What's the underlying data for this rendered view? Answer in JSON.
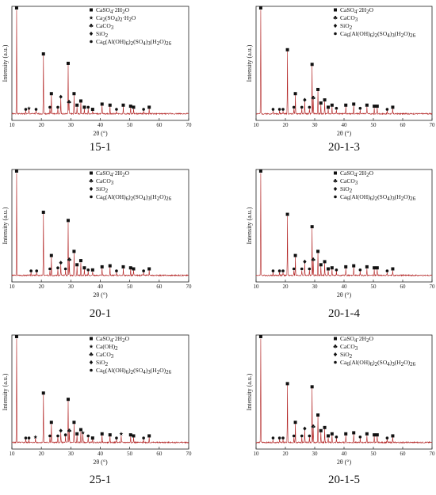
{
  "chart_data": [
    {
      "type": "line",
      "caption": "15-1",
      "xlabel": "2θ (°)",
      "ylabel": "Intensity (a.u.)",
      "xlim": [
        10,
        70
      ],
      "xticks": [
        10,
        20,
        30,
        40,
        50,
        60,
        70
      ],
      "legend": [
        "CaSO4·2H2O",
        "Ca2(SO4)2·H2O",
        "CaCO3",
        "SiO2",
        "Ca6(Al(OH)6)2(SO4)3(H2O)26"
      ],
      "peaks": [
        {
          "x": 11.6,
          "y": 100,
          "m": "square"
        },
        {
          "x": 14.7,
          "y": 3,
          "m": "circle"
        },
        {
          "x": 15.8,
          "y": 4,
          "m": "star"
        },
        {
          "x": 18.2,
          "y": 3,
          "m": "circle"
        },
        {
          "x": 20.7,
          "y": 56,
          "m": "square"
        },
        {
          "x": 22.9,
          "y": 5,
          "m": "circle"
        },
        {
          "x": 23.4,
          "y": 18,
          "m": "square"
        },
        {
          "x": 25.6,
          "y": 5,
          "m": "circle"
        },
        {
          "x": 26.6,
          "y": 15,
          "m": "diamond"
        },
        {
          "x": 29.1,
          "y": 47,
          "m": "square"
        },
        {
          "x": 29.4,
          "y": 10,
          "m": "club"
        },
        {
          "x": 31.1,
          "y": 18,
          "m": "square"
        },
        {
          "x": 32.1,
          "y": 7,
          "m": "square"
        },
        {
          "x": 33.4,
          "y": 11,
          "m": "square"
        },
        {
          "x": 34.6,
          "y": 5,
          "m": "square"
        },
        {
          "x": 35.9,
          "y": 5,
          "m": "circle"
        },
        {
          "x": 37.4,
          "y": 3,
          "m": "square"
        },
        {
          "x": 40.6,
          "y": 8,
          "m": "square"
        },
        {
          "x": 43.3,
          "y": 7,
          "m": "square"
        },
        {
          "x": 45.5,
          "y": 3,
          "m": "circle"
        },
        {
          "x": 47.8,
          "y": 7,
          "m": "square"
        },
        {
          "x": 50.3,
          "y": 6,
          "m": "square"
        },
        {
          "x": 51.3,
          "y": 5,
          "m": "square"
        },
        {
          "x": 54.7,
          "y": 3,
          "m": "circle"
        },
        {
          "x": 56.6,
          "y": 5,
          "m": "square"
        }
      ]
    },
    {
      "type": "line",
      "caption": "20-1-3",
      "xlabel": "2θ (°)",
      "ylabel": "Intensity (a.u.)",
      "xlim": [
        10,
        70
      ],
      "xticks": [
        10,
        20,
        30,
        40,
        50,
        60,
        70
      ],
      "legend": [
        "CaSO4·2H2O",
        "CaCO3",
        "SiO2",
        "Ca6(Al(OH)6)2(SO4)3(H2O)26"
      ],
      "peaks": [
        {
          "x": 11.6,
          "y": 100,
          "m": "square"
        },
        {
          "x": 15.8,
          "y": 3,
          "m": "circle"
        },
        {
          "x": 18.0,
          "y": 3,
          "m": "circle"
        },
        {
          "x": 19.2,
          "y": 3,
          "m": "circle"
        },
        {
          "x": 20.7,
          "y": 60,
          "m": "square"
        },
        {
          "x": 22.9,
          "y": 5,
          "m": "circle"
        },
        {
          "x": 23.4,
          "y": 18,
          "m": "square"
        },
        {
          "x": 25.6,
          "y": 5,
          "m": "circle"
        },
        {
          "x": 26.6,
          "y": 12,
          "m": "diamond"
        },
        {
          "x": 28.2,
          "y": 5,
          "m": "circle"
        },
        {
          "x": 29.1,
          "y": 46,
          "m": "square"
        },
        {
          "x": 29.5,
          "y": 14,
          "m": "club"
        },
        {
          "x": 31.1,
          "y": 22,
          "m": "square"
        },
        {
          "x": 32.1,
          "y": 9,
          "m": "square"
        },
        {
          "x": 33.4,
          "y": 12,
          "m": "square"
        },
        {
          "x": 34.6,
          "y": 5,
          "m": "square"
        },
        {
          "x": 35.9,
          "y": 7,
          "m": "square"
        },
        {
          "x": 37.4,
          "y": 4,
          "m": "circle"
        },
        {
          "x": 40.6,
          "y": 7,
          "m": "square"
        },
        {
          "x": 43.3,
          "y": 8,
          "m": "square"
        },
        {
          "x": 45.5,
          "y": 4,
          "m": "circle"
        },
        {
          "x": 47.8,
          "y": 7,
          "m": "square"
        },
        {
          "x": 50.3,
          "y": 6,
          "m": "square"
        },
        {
          "x": 51.3,
          "y": 6,
          "m": "square"
        },
        {
          "x": 54.7,
          "y": 3,
          "m": "circle"
        },
        {
          "x": 56.6,
          "y": 5,
          "m": "square"
        }
      ]
    },
    {
      "type": "line",
      "caption": "20-1",
      "xlabel": "2θ (°)",
      "ylabel": "Intensity (a.u.)",
      "xlim": [
        10,
        70
      ],
      "xticks": [
        10,
        20,
        30,
        40,
        50,
        60,
        70
      ],
      "legend": [
        "CaSO4·2H2O",
        "CaCO3",
        "SiO2",
        "Ca6(Al(OH)6)2(SO4)3(H2O)26"
      ],
      "peaks": [
        {
          "x": 11.6,
          "y": 100,
          "m": "square"
        },
        {
          "x": 16.5,
          "y": 3,
          "m": "circle"
        },
        {
          "x": 18.4,
          "y": 3,
          "m": "circle"
        },
        {
          "x": 20.7,
          "y": 60,
          "m": "square"
        },
        {
          "x": 22.9,
          "y": 5,
          "m": "circle"
        },
        {
          "x": 23.4,
          "y": 18,
          "m": "square"
        },
        {
          "x": 25.6,
          "y": 6,
          "m": "circle"
        },
        {
          "x": 26.6,
          "y": 11,
          "m": "diamond"
        },
        {
          "x": 28.2,
          "y": 5,
          "m": "circle"
        },
        {
          "x": 29.1,
          "y": 52,
          "m": "square"
        },
        {
          "x": 29.5,
          "y": 14,
          "m": "club"
        },
        {
          "x": 31.1,
          "y": 22,
          "m": "square"
        },
        {
          "x": 32.1,
          "y": 9,
          "m": "square"
        },
        {
          "x": 33.4,
          "y": 13,
          "m": "square"
        },
        {
          "x": 34.6,
          "y": 6,
          "m": "square"
        },
        {
          "x": 35.9,
          "y": 4,
          "m": "circle"
        },
        {
          "x": 37.4,
          "y": 4,
          "m": "square"
        },
        {
          "x": 40.6,
          "y": 7,
          "m": "square"
        },
        {
          "x": 43.3,
          "y": 8,
          "m": "square"
        },
        {
          "x": 45.5,
          "y": 3,
          "m": "circle"
        },
        {
          "x": 47.8,
          "y": 7,
          "m": "square"
        },
        {
          "x": 50.3,
          "y": 6,
          "m": "square"
        },
        {
          "x": 51.3,
          "y": 5,
          "m": "square"
        },
        {
          "x": 54.7,
          "y": 3,
          "m": "circle"
        },
        {
          "x": 56.6,
          "y": 5,
          "m": "square"
        }
      ]
    },
    {
      "type": "line",
      "caption": "20-1-4",
      "xlabel": "2θ (°)",
      "ylabel": "Intensity (a.u.)",
      "xlim": [
        10,
        70
      ],
      "xticks": [
        10,
        20,
        30,
        40,
        50,
        60,
        70
      ],
      "legend": [
        "CaSO4·2H2O",
        "CaCO3",
        "SiO2",
        "Ca6(Al(OH)6)2(SO4)3(H2O)26"
      ],
      "peaks": [
        {
          "x": 11.6,
          "y": 100,
          "m": "square"
        },
        {
          "x": 15.8,
          "y": 3,
          "m": "circle"
        },
        {
          "x": 18.0,
          "y": 3,
          "m": "circle"
        },
        {
          "x": 19.2,
          "y": 3,
          "m": "circle"
        },
        {
          "x": 20.7,
          "y": 58,
          "m": "square"
        },
        {
          "x": 22.9,
          "y": 5,
          "m": "circle"
        },
        {
          "x": 23.4,
          "y": 18,
          "m": "square"
        },
        {
          "x": 25.6,
          "y": 5,
          "m": "circle"
        },
        {
          "x": 26.6,
          "y": 12,
          "m": "diamond"
        },
        {
          "x": 28.2,
          "y": 5,
          "m": "circle"
        },
        {
          "x": 29.1,
          "y": 46,
          "m": "square"
        },
        {
          "x": 29.5,
          "y": 14,
          "m": "club"
        },
        {
          "x": 31.1,
          "y": 22,
          "m": "square"
        },
        {
          "x": 32.1,
          "y": 9,
          "m": "square"
        },
        {
          "x": 33.4,
          "y": 12,
          "m": "square"
        },
        {
          "x": 34.6,
          "y": 5,
          "m": "square"
        },
        {
          "x": 35.9,
          "y": 6,
          "m": "square"
        },
        {
          "x": 37.4,
          "y": 4,
          "m": "circle"
        },
        {
          "x": 40.6,
          "y": 7,
          "m": "square"
        },
        {
          "x": 43.3,
          "y": 8,
          "m": "square"
        },
        {
          "x": 45.5,
          "y": 4,
          "m": "circle"
        },
        {
          "x": 47.8,
          "y": 7,
          "m": "square"
        },
        {
          "x": 50.3,
          "y": 6,
          "m": "square"
        },
        {
          "x": 51.3,
          "y": 6,
          "m": "square"
        },
        {
          "x": 54.7,
          "y": 3,
          "m": "circle"
        },
        {
          "x": 56.6,
          "y": 5,
          "m": "square"
        }
      ]
    },
    {
      "type": "line",
      "caption": "25-1",
      "xlabel": "2θ (°)",
      "ylabel": "Intensity (a.u.)",
      "xlim": [
        10,
        70
      ],
      "xticks": [
        10,
        20,
        30,
        40,
        50,
        60,
        70
      ],
      "legend": [
        "CaSO4·2H2O",
        "Ca(OH)2",
        "CaCO3",
        "SiO2",
        "Ca6(Al(OH)6)2(SO4)3(H2O)26"
      ],
      "peaks": [
        {
          "x": 11.6,
          "y": 100,
          "m": "square"
        },
        {
          "x": 14.7,
          "y": 3,
          "m": "circle"
        },
        {
          "x": 15.8,
          "y": 3,
          "m": "circle"
        },
        {
          "x": 18.0,
          "y": 4,
          "m": "star"
        },
        {
          "x": 20.7,
          "y": 46,
          "m": "square"
        },
        {
          "x": 22.9,
          "y": 5,
          "m": "circle"
        },
        {
          "x": 23.4,
          "y": 18,
          "m": "square"
        },
        {
          "x": 25.6,
          "y": 5,
          "m": "circle"
        },
        {
          "x": 26.6,
          "y": 10,
          "m": "diamond"
        },
        {
          "x": 28.2,
          "y": 6,
          "m": "circle"
        },
        {
          "x": 29.1,
          "y": 40,
          "m": "square"
        },
        {
          "x": 29.5,
          "y": 10,
          "m": "club"
        },
        {
          "x": 31.1,
          "y": 18,
          "m": "square"
        },
        {
          "x": 32.1,
          "y": 7,
          "m": "square"
        },
        {
          "x": 33.4,
          "y": 11,
          "m": "square"
        },
        {
          "x": 34.1,
          "y": 8,
          "m": "star"
        },
        {
          "x": 35.9,
          "y": 5,
          "m": "circle"
        },
        {
          "x": 37.4,
          "y": 3,
          "m": "square"
        },
        {
          "x": 40.6,
          "y": 7,
          "m": "square"
        },
        {
          "x": 43.3,
          "y": 6,
          "m": "square"
        },
        {
          "x": 45.5,
          "y": 3,
          "m": "circle"
        },
        {
          "x": 47.1,
          "y": 7,
          "m": "star"
        },
        {
          "x": 50.3,
          "y": 6,
          "m": "square"
        },
        {
          "x": 51.3,
          "y": 5,
          "m": "square"
        },
        {
          "x": 54.7,
          "y": 3,
          "m": "circle"
        },
        {
          "x": 56.6,
          "y": 5,
          "m": "square"
        }
      ]
    },
    {
      "type": "line",
      "caption": "20-1-5",
      "xlabel": "2θ (°)",
      "ylabel": "Intensity (a.u.)",
      "xlim": [
        10,
        70
      ],
      "xticks": [
        10,
        20,
        30,
        40,
        50,
        60,
        70
      ],
      "legend": [
        "CaSO4·2H2O",
        "CaCO3",
        "SiO2",
        "Ca6(Al(OH)6)2(SO4)3(H2O)26"
      ],
      "peaks": [
        {
          "x": 11.6,
          "y": 100,
          "m": "square"
        },
        {
          "x": 15.8,
          "y": 3,
          "m": "circle"
        },
        {
          "x": 18.0,
          "y": 3,
          "m": "circle"
        },
        {
          "x": 19.2,
          "y": 3,
          "m": "circle"
        },
        {
          "x": 20.7,
          "y": 55,
          "m": "square"
        },
        {
          "x": 22.9,
          "y": 5,
          "m": "circle"
        },
        {
          "x": 23.4,
          "y": 18,
          "m": "square"
        },
        {
          "x": 25.6,
          "y": 5,
          "m": "circle"
        },
        {
          "x": 26.6,
          "y": 12,
          "m": "diamond"
        },
        {
          "x": 28.2,
          "y": 5,
          "m": "circle"
        },
        {
          "x": 29.1,
          "y": 52,
          "m": "square"
        },
        {
          "x": 29.5,
          "y": 14,
          "m": "club"
        },
        {
          "x": 31.1,
          "y": 25,
          "m": "square"
        },
        {
          "x": 32.1,
          "y": 10,
          "m": "square"
        },
        {
          "x": 33.4,
          "y": 13,
          "m": "square"
        },
        {
          "x": 34.6,
          "y": 5,
          "m": "square"
        },
        {
          "x": 35.9,
          "y": 7,
          "m": "square"
        },
        {
          "x": 37.4,
          "y": 4,
          "m": "circle"
        },
        {
          "x": 40.6,
          "y": 7,
          "m": "square"
        },
        {
          "x": 43.3,
          "y": 8,
          "m": "square"
        },
        {
          "x": 45.5,
          "y": 4,
          "m": "circle"
        },
        {
          "x": 47.8,
          "y": 7,
          "m": "square"
        },
        {
          "x": 50.3,
          "y": 6,
          "m": "square"
        },
        {
          "x": 51.3,
          "y": 6,
          "m": "square"
        },
        {
          "x": 54.7,
          "y": 3,
          "m": "circle"
        },
        {
          "x": 56.6,
          "y": 5,
          "m": "square"
        }
      ]
    }
  ],
  "colors": {
    "trace": "#b22222",
    "axis": "#222222",
    "marker": "#111111"
  }
}
